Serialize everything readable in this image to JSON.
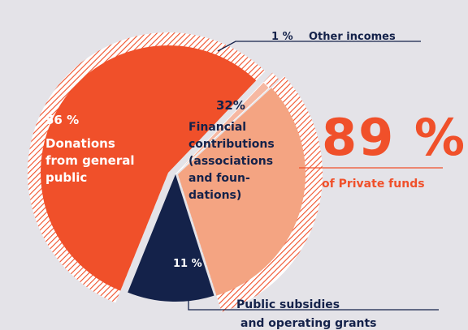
{
  "chart_data": {
    "type": "pie",
    "slices": [
      {
        "label_lines": [
          "Donations",
          "from general",
          "public"
        ],
        "percent_text": "56 %",
        "value": 56,
        "color": "#f0502a"
      },
      {
        "label_lines": [
          "Other incomes"
        ],
        "percent_text": "1 %",
        "value": 1,
        "color": "#f6b8a2"
      },
      {
        "label_lines": [
          "Financial",
          "contributions",
          "(associations",
          "and foun-",
          "dations)"
        ],
        "percent_text": "32%",
        "value": 32,
        "color": "#f4a482"
      },
      {
        "label_lines": [
          "Public subsidies",
          "and operating grants"
        ],
        "percent_text": "11 %",
        "value": 11,
        "color": "#14224a"
      }
    ],
    "highlight": {
      "value_text": "89 %",
      "caption": "of Private funds",
      "color": "#f0502a"
    }
  }
}
